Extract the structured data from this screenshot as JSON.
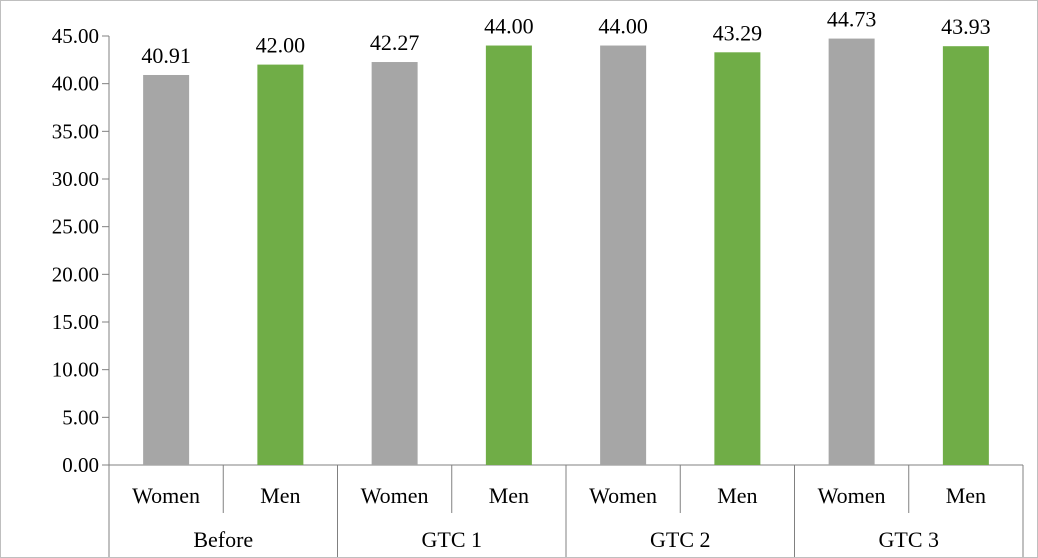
{
  "chart_data": {
    "type": "bar",
    "groups": [
      "Before",
      "GTC 1",
      "GTC 2",
      "GTC 3"
    ],
    "categories": [
      "Women",
      "Men",
      "Women",
      "Men",
      "Women",
      "Men",
      "Women",
      "Men"
    ],
    "values": [
      40.91,
      42.0,
      42.27,
      44.0,
      44.0,
      43.29,
      44.73,
      43.93
    ],
    "data_labels": [
      "40.91",
      "42.00",
      "42.27",
      "44.00",
      "44.00",
      "43.29",
      "44.73",
      "43.93"
    ],
    "bar_colors": [
      "#a6a6a6",
      "#70ad47",
      "#a6a6a6",
      "#70ad47",
      "#a6a6a6",
      "#70ad47",
      "#a6a6a6",
      "#70ad47"
    ],
    "y_ticks": [
      "0.00",
      "5.00",
      "10.00",
      "15.00",
      "20.00",
      "25.00",
      "30.00",
      "35.00",
      "40.00",
      "45.00"
    ],
    "ylim": [
      0,
      45
    ],
    "grid": false,
    "legend": "none",
    "title": "",
    "xlabel": "",
    "ylabel": ""
  }
}
